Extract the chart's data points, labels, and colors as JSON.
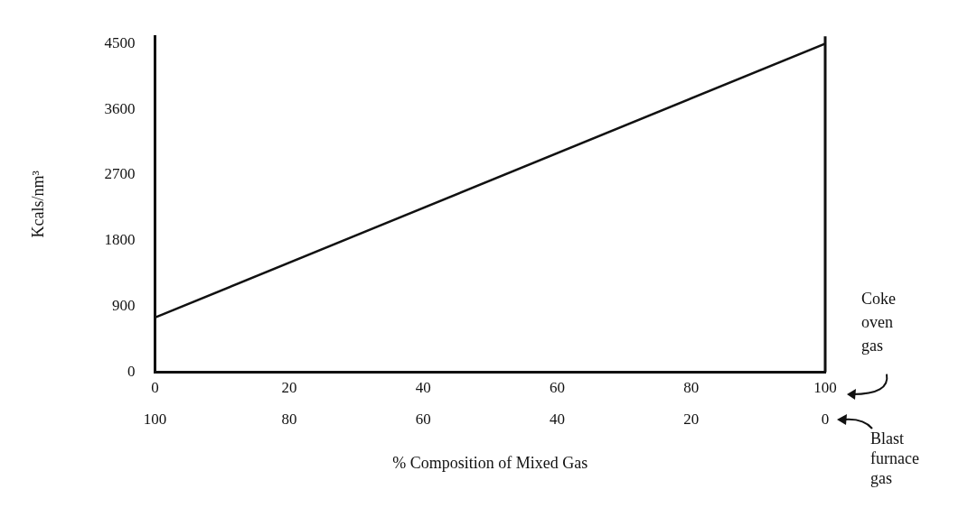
{
  "chart_data": {
    "type": "line",
    "xlabel": "% Composition of Mixed Gas",
    "ylabel": "Kcals/nm³",
    "x": [
      0,
      100
    ],
    "series": [
      {
        "color": "#111111",
        "values": [
          750,
          4500
        ]
      }
    ],
    "xlim": [
      0,
      100
    ],
    "xticks": [
      0,
      20,
      40,
      60,
      80,
      100
    ],
    "x2lim": [
      100,
      0
    ],
    "x2ticks": [
      100,
      80,
      60,
      40,
      20,
      0
    ],
    "ylim": [
      0,
      4600
    ],
    "yticks": [
      0,
      900,
      1800,
      2700,
      3600,
      4500
    ],
    "annotations": [
      "Coke oven gas",
      "Blast furnace gas"
    ],
    "grid": false,
    "legend": false,
    "marker": "none",
    "line_style": "solid"
  }
}
